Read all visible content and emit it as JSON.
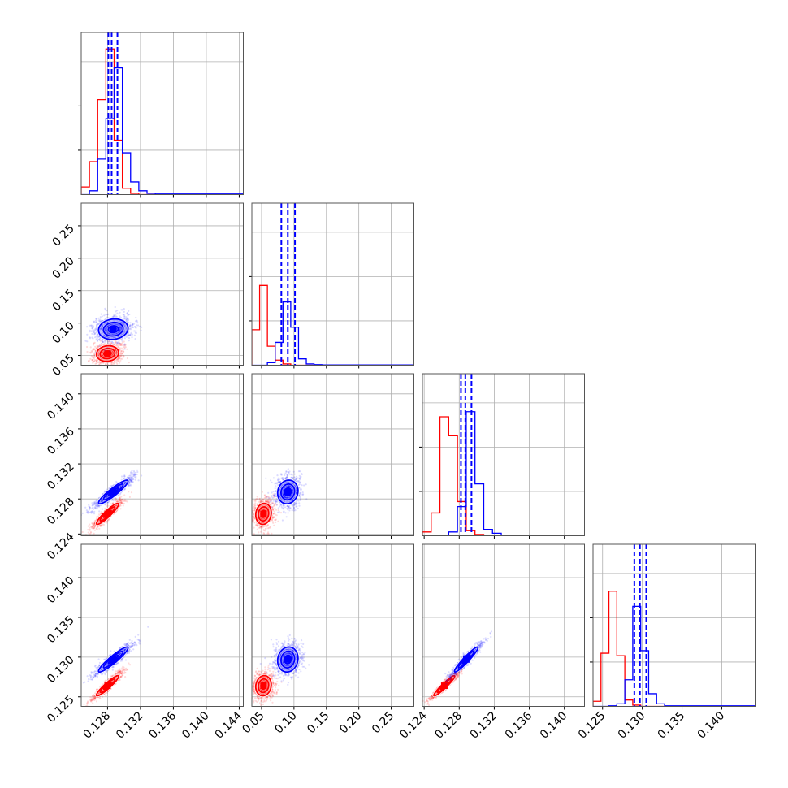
{
  "chart_data": {
    "type": "scatter",
    "kind": "corner-plot",
    "title": "",
    "parameters": [
      "",
      "",
      "",
      ""
    ],
    "series_colors": {
      "series_a": "#0000ff",
      "series_b": "#ff0000"
    },
    "quantile_line_color": "#0000ff",
    "grid": true,
    "axes": [
      {
        "lim": [
          0.1248,
          0.1445
        ],
        "ticks": [
          0.128,
          0.132,
          0.136,
          0.14,
          0.144
        ],
        "tick_labels": [
          "0.128",
          "0.132",
          "0.136",
          "0.140",
          "0.144"
        ]
      },
      {
        "lim": [
          0.035,
          0.285
        ],
        "ticks": [
          0.05,
          0.1,
          0.15,
          0.2,
          0.25
        ],
        "tick_labels": [
          "0.05",
          "0.10",
          "0.15",
          "0.20",
          "0.25"
        ]
      },
      {
        "lim": [
          0.1238,
          0.1423
        ],
        "ticks": [
          0.124,
          0.128,
          0.132,
          0.136,
          0.14
        ],
        "tick_labels": [
          "0.124",
          "0.128",
          "0.132",
          "0.136",
          "0.140"
        ]
      },
      {
        "lim": [
          0.1238,
          0.1442
        ],
        "ticks": [
          0.125,
          0.13,
          0.135,
          0.14
        ],
        "tick_labels": [
          "0.125",
          "0.130",
          "0.135",
          "0.140"
        ]
      }
    ],
    "row_tick_labels": [
      [],
      [
        "0.05",
        "0.10",
        "0.15",
        "0.20",
        "0.25"
      ],
      [
        "0.124",
        "0.128",
        "0.132",
        "0.136",
        "0.140"
      ],
      [
        "0.125",
        "0.130",
        "0.135",
        "0.140"
      ]
    ],
    "histograms": [
      {
        "edges": [
          0.1248,
          0.1258,
          0.1268,
          0.1278,
          0.1288,
          0.1298,
          0.1308,
          0.1318,
          0.1328,
          0.1338,
          0.1445
        ],
        "series_a": [
          0.0,
          0.03,
          0.28,
          0.6,
          1.0,
          0.33,
          0.1,
          0.03,
          0.01,
          0.005
        ],
        "series_b": [
          0.06,
          0.26,
          0.75,
          1.15,
          0.43,
          0.05,
          0.01,
          0.0,
          0.0,
          0.0
        ],
        "quantiles_a": [
          0.1281,
          0.1285,
          0.1292
        ]
      },
      {
        "edges": [
          0.035,
          0.047,
          0.059,
          0.071,
          0.083,
          0.095,
          0.107,
          0.119,
          0.131,
          0.143,
          0.285
        ],
        "series_a": [
          0.0,
          0.0,
          0.02,
          0.18,
          0.5,
          0.3,
          0.05,
          0.01,
          0.005,
          0.002
        ],
        "series_b": [
          0.28,
          0.63,
          0.15,
          0.04,
          0.01,
          0.0,
          0.0,
          0.0,
          0.0,
          0.0
        ],
        "quantiles_a": [
          0.0805,
          0.0905,
          0.1015
        ]
      },
      {
        "edges": [
          0.1238,
          0.1248,
          0.1258,
          0.1268,
          0.1278,
          0.1288,
          0.1298,
          0.1308,
          0.1318,
          0.1328,
          0.1423
        ],
        "series_a": [
          0.0,
          0.0,
          0.005,
          0.03,
          0.23,
          0.98,
          0.41,
          0.05,
          0.02,
          0.005
        ],
        "series_b": [
          0.03,
          0.18,
          0.94,
          0.79,
          0.27,
          0.04,
          0.01,
          0.0,
          0.0,
          0.0
        ],
        "quantiles_a": [
          0.1282,
          0.1287,
          0.1294
        ]
      },
      {
        "edges": [
          0.1238,
          0.1248,
          0.1258,
          0.1268,
          0.1278,
          0.1288,
          0.1298,
          0.1308,
          0.1318,
          0.1328,
          0.1442
        ],
        "series_a": [
          0.0,
          0.0,
          0.005,
          0.02,
          0.21,
          0.79,
          0.44,
          0.1,
          0.02,
          0.005
        ],
        "series_b": [
          0.04,
          0.42,
          0.91,
          0.4,
          0.05,
          0.01,
          0.0,
          0.0,
          0.0,
          0.0
        ],
        "quantiles_a": [
          0.129,
          0.1297,
          0.1305
        ]
      }
    ],
    "clouds": {
      "series_a": {
        "mean": [
          0.1287,
          0.0905,
          0.1288,
          0.1297
        ],
        "sd": [
          0.0012,
          0.0105,
          0.0009,
          0.00105
        ]
      },
      "series_b": {
        "mean": [
          0.128,
          0.053,
          0.1263,
          0.1264
        ],
        "sd": [
          0.0009,
          0.008,
          0.0008,
          0.00085
        ]
      },
      "correlations": [
        [
          0,
          1,
          0.1
        ],
        [
          0,
          2,
          0.92
        ],
        [
          0,
          3,
          0.93
        ],
        [
          1,
          2,
          0.1
        ],
        [
          1,
          3,
          0.1
        ],
        [
          2,
          3,
          0.95
        ]
      ]
    },
    "contour_levels": [
      0.5,
      1.0,
      1.5
    ]
  }
}
